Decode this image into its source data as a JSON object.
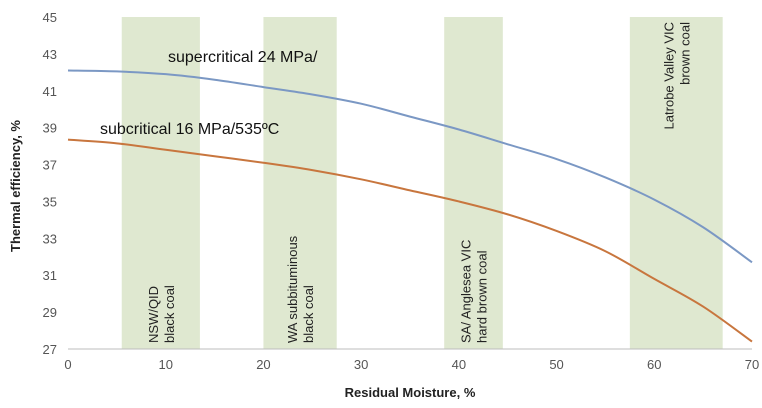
{
  "chart_data": {
    "type": "line",
    "xlabel": "Residual Moisture, %",
    "ylabel": "Thermal efficiency, %",
    "xlim": [
      0,
      70
    ],
    "ylim": [
      27,
      45
    ],
    "xticks": [
      0,
      10,
      20,
      30,
      40,
      50,
      60,
      70
    ],
    "yticks": [
      27,
      29,
      31,
      33,
      35,
      37,
      39,
      41,
      43,
      45
    ],
    "grid": false,
    "legend": "none",
    "series": [
      {
        "name": "supercritical 24 MPa/",
        "color": "#7b98c4",
        "x": [
          0,
          5,
          10,
          15,
          20,
          25,
          30,
          35,
          40,
          45,
          50,
          55,
          60,
          65,
          70
        ],
        "y": [
          42.1,
          42.05,
          41.9,
          41.6,
          41.2,
          40.8,
          40.3,
          39.6,
          38.9,
          38.1,
          37.3,
          36.3,
          35.1,
          33.6,
          31.7
        ]
      },
      {
        "name": "subcritical 16 MPa/535ºC",
        "color": "#c8763e",
        "x": [
          0,
          5,
          10,
          15,
          20,
          25,
          30,
          35,
          40,
          45,
          50,
          55,
          60,
          65,
          70
        ],
        "y": [
          38.35,
          38.15,
          37.8,
          37.45,
          37.1,
          36.7,
          36.2,
          35.6,
          35.0,
          34.3,
          33.4,
          32.3,
          30.8,
          29.3,
          27.4
        ]
      }
    ],
    "bands": [
      {
        "x0": 5.5,
        "x1": 13.5,
        "label": [
          "NSW/QID",
          "black coal"
        ]
      },
      {
        "x0": 20,
        "x1": 27.5,
        "label": [
          "WA subbituminous",
          "black coal"
        ]
      },
      {
        "x0": 38.5,
        "x1": 44.5,
        "label": [
          "SA/ Anglesea  VIC",
          "hard brown coal"
        ]
      },
      {
        "x0": 57.5,
        "x1": 67,
        "label": [
          "Latrobe Valley  VIC",
          "brown coal"
        ]
      }
    ],
    "band_color": "#dfe8d0"
  }
}
